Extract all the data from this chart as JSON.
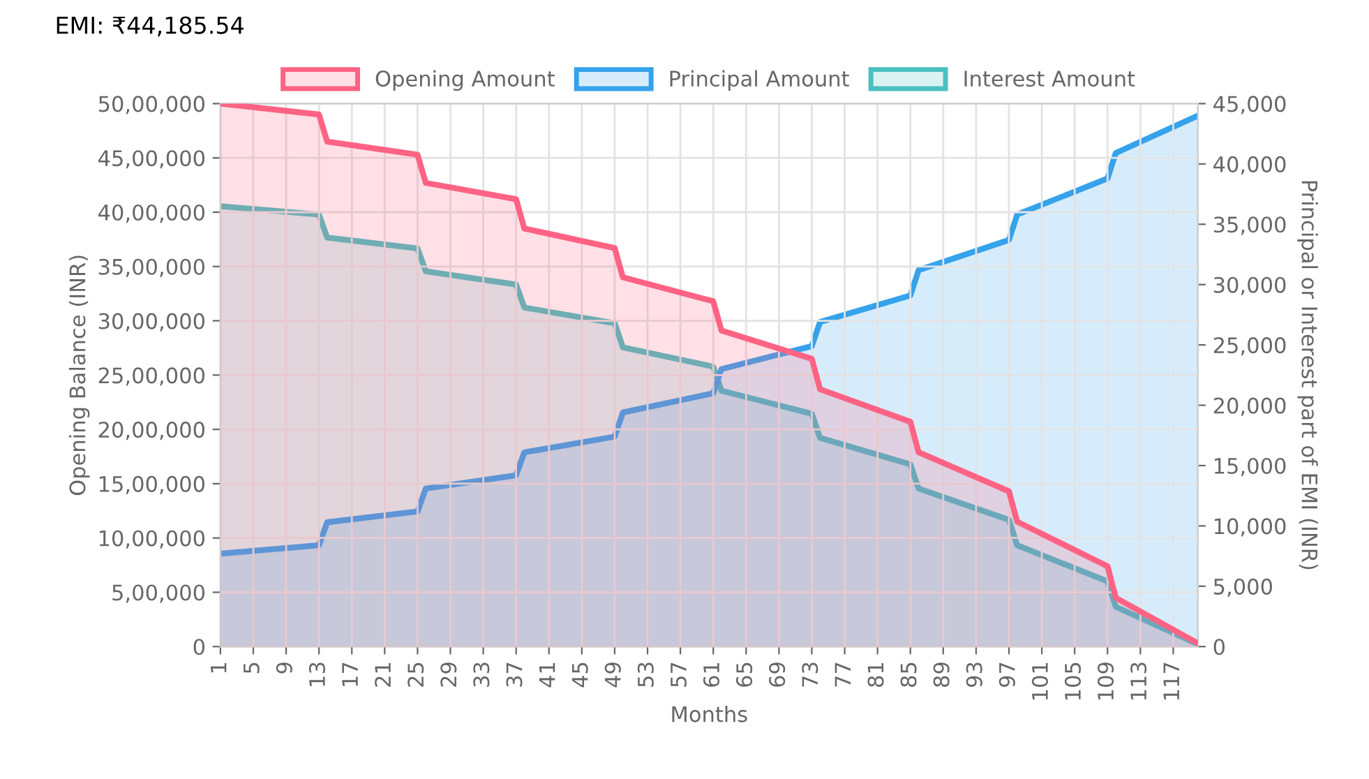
{
  "chart_data": {
    "type": "area",
    "title": "EMI: ₹44,185.54",
    "xlabel": "Months",
    "ylabel": "Opening Balance (INR)",
    "y2label": "Principal or Interest part of EMI (INR)",
    "xlim": [
      1,
      120
    ],
    "xticks": [
      1,
      5,
      9,
      13,
      17,
      21,
      25,
      29,
      33,
      37,
      41,
      45,
      49,
      53,
      57,
      61,
      65,
      69,
      73,
      77,
      81,
      85,
      89,
      93,
      97,
      101,
      105,
      109,
      113,
      117
    ],
    "ylim": [
      0,
      5000000
    ],
    "yticks": [
      {
        "value": 0,
        "label": "0"
      },
      {
        "value": 500000,
        "label": "5,00,000"
      },
      {
        "value": 1000000,
        "label": "10,00,000"
      },
      {
        "value": 1500000,
        "label": "15,00,000"
      },
      {
        "value": 2000000,
        "label": "20,00,000"
      },
      {
        "value": 2500000,
        "label": "25,00,000"
      },
      {
        "value": 3000000,
        "label": "30,00,000"
      },
      {
        "value": 3500000,
        "label": "35,00,000"
      },
      {
        "value": 4000000,
        "label": "40,00,000"
      },
      {
        "value": 4500000,
        "label": "45,00,000"
      },
      {
        "value": 5000000,
        "label": "50,00,000"
      }
    ],
    "y2lim": [
      0,
      45000
    ],
    "y2ticks": [
      0,
      {
        "value": 5000,
        "label": "5,000"
      },
      {
        "value": 10000,
        "label": "10,000"
      },
      {
        "value": 15000,
        "label": "15,000"
      },
      {
        "value": 20000,
        "label": "20,000"
      },
      {
        "value": 25000,
        "label": "25,000"
      },
      {
        "value": 30000,
        "label": "30,000"
      },
      {
        "value": 35000,
        "label": "35,000"
      },
      {
        "value": 40000,
        "label": "40,000"
      },
      {
        "value": 45000,
        "label": "45,000"
      }
    ],
    "grid": true,
    "legend": "top",
    "series": [
      {
        "name": "Opening Amount",
        "color": "#ff6384",
        "x": [
          1,
          13,
          14,
          25,
          26,
          37,
          38,
          49,
          50,
          61,
          62,
          73,
          74,
          85,
          86,
          97,
          98,
          109,
          110,
          120
        ],
        "values": [
          5000000,
          4900000,
          4650000,
          4530000,
          4270000,
          4120000,
          3850000,
          3670000,
          3400000,
          3180000,
          2910000,
          2650000,
          2370000,
          2070000,
          1790000,
          1430000,
          1150000,
          740000,
          450000,
          30000
        ]
      },
      {
        "name": "Principal Amount",
        "color": "#36a2eb",
        "axis": "y2",
        "x": [
          1,
          13,
          14,
          25,
          26,
          37,
          38,
          49,
          50,
          61,
          62,
          73,
          74,
          85,
          86,
          97,
          98,
          109,
          110,
          120
        ],
        "values": [
          7700,
          8400,
          10300,
          11200,
          13100,
          14200,
          16100,
          17400,
          19400,
          21000,
          23000,
          24900,
          26900,
          29100,
          31200,
          33700,
          35800,
          38800,
          40900,
          44000
        ]
      },
      {
        "name": "Interest Amount",
        "color": "#4bc0c0",
        "axis": "y2",
        "x": [
          1,
          13,
          14,
          25,
          26,
          37,
          38,
          49,
          50,
          61,
          62,
          73,
          74,
          85,
          86,
          97,
          98,
          109,
          110,
          120
        ],
        "values": [
          36500,
          35800,
          33900,
          33000,
          31100,
          30000,
          28100,
          26800,
          24800,
          23200,
          21200,
          19300,
          17300,
          15100,
          13100,
          10500,
          8400,
          5400,
          3300,
          200
        ]
      }
    ]
  }
}
